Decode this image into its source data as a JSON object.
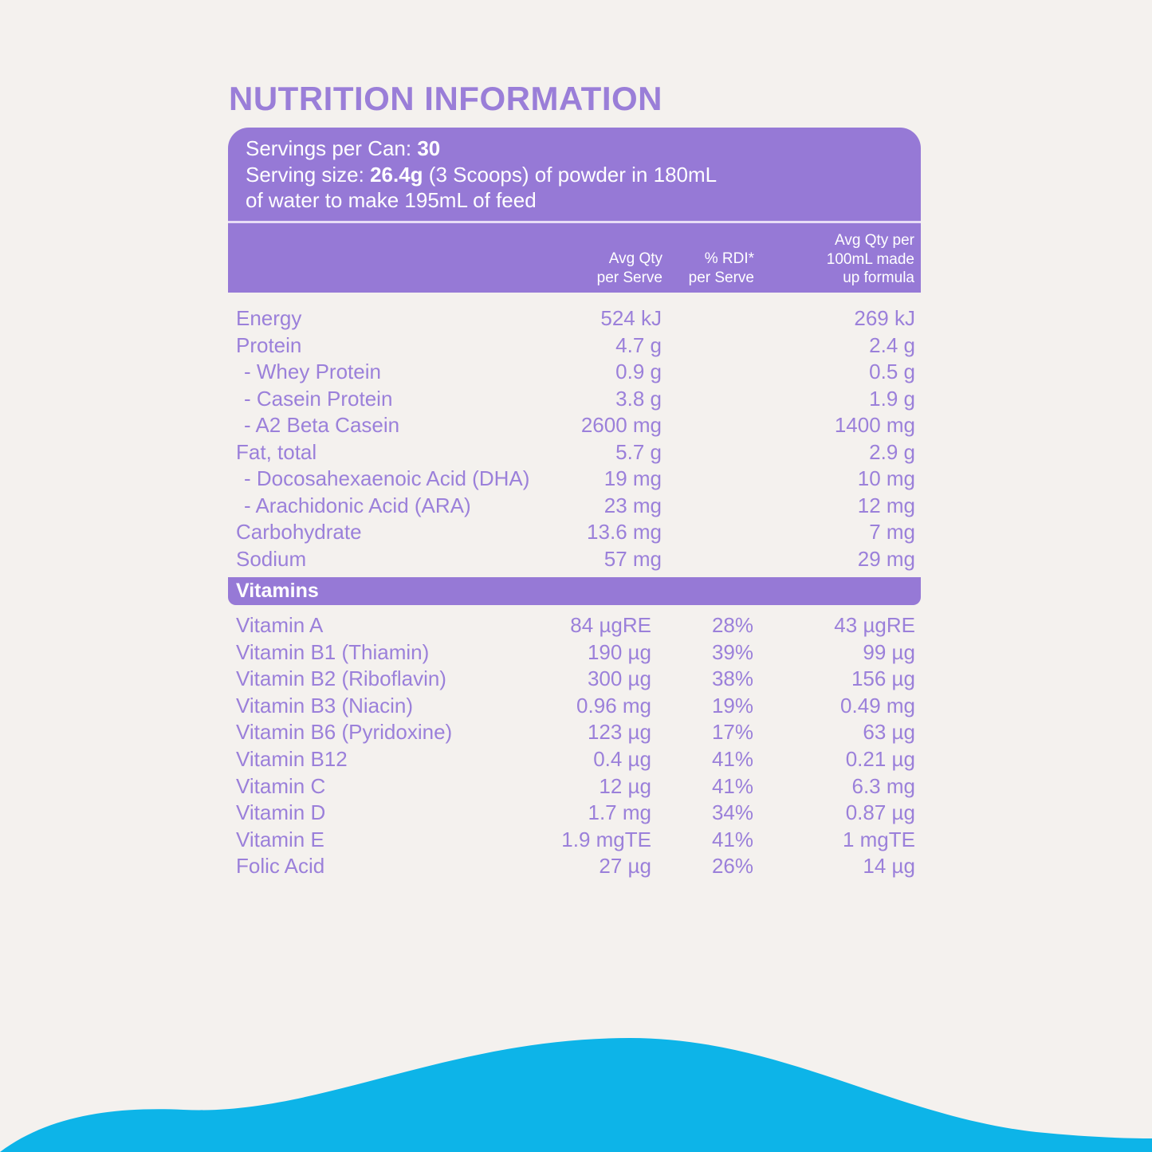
{
  "title": "NUTRITION INFORMATION",
  "serving": {
    "servings_label": "Servings per Can: ",
    "servings_value": "30",
    "size_label": "Serving size: ",
    "size_value": "26.4g",
    "size_rest": " (3 Scoops) of powder in 180mL",
    "line3": "of water to make 195mL of feed"
  },
  "columns": {
    "per_serve": [
      "Avg Qty",
      "per Serve"
    ],
    "rdi": [
      "% RDI*",
      "per Serve"
    ],
    "per_100ml": [
      "Avg Qty per",
      "100mL made",
      "up formula"
    ]
  },
  "nutrients": [
    {
      "name": "Energy",
      "serve": "524 kJ",
      "per100": "269 kJ",
      "sub": false
    },
    {
      "name": "Protein",
      "serve": "4.7 g",
      "per100": "2.4 g",
      "sub": false
    },
    {
      "name": "- Whey Protein",
      "serve": "0.9 g",
      "per100": "0.5 g",
      "sub": true
    },
    {
      "name": "- Casein Protein",
      "serve": "3.8 g",
      "per100": "1.9 g",
      "sub": true
    },
    {
      "name": "- A2 Beta Casein",
      "serve": "2600 mg",
      "per100": "1400 mg",
      "sub": true
    },
    {
      "name": "Fat, total",
      "serve": "5.7 g",
      "per100": "2.9 g",
      "sub": false
    },
    {
      "name": "- Docosahexaenoic Acid (DHA)",
      "serve": "19 mg",
      "per100": "10 mg",
      "sub": true
    },
    {
      "name": "- Arachidonic Acid (ARA)",
      "serve": "23 mg",
      "per100": "12 mg",
      "sub": true
    },
    {
      "name": "Carbohydrate",
      "serve": "13.6 mg",
      "per100": "7 mg",
      "sub": false
    },
    {
      "name": "Sodium",
      "serve": "57 mg",
      "per100": "29 mg",
      "sub": false
    }
  ],
  "vitamins_label": "Vitamins",
  "vitamins": [
    {
      "name": "Vitamin A",
      "serve": "84 µgRE",
      "rdi": "28%",
      "per100": "43 µgRE"
    },
    {
      "name": "Vitamin B1 (Thiamin)",
      "serve": "190 µg",
      "rdi": "39%",
      "per100": "99 µg"
    },
    {
      "name": "Vitamin B2 (Riboflavin)",
      "serve": "300 µg",
      "rdi": "38%",
      "per100": "156 µg"
    },
    {
      "name": "Vitamin B3 (Niacin)",
      "serve": "0.96 mg",
      "rdi": "19%",
      "per100": "0.49 mg"
    },
    {
      "name": "Vitamin B6 (Pyridoxine)",
      "serve": "123 µg",
      "rdi": "17%",
      "per100": "63 µg"
    },
    {
      "name": "Vitamin B12",
      "serve": "0.4 µg",
      "rdi": "41%",
      "per100": "0.21 µg"
    },
    {
      "name": "Vitamin C",
      "serve": "12 µg",
      "rdi": "41%",
      "per100": "6.3 mg"
    },
    {
      "name": "Vitamin D",
      "serve": "1.7 mg",
      "rdi": "34%",
      "per100": "0.87 µg"
    },
    {
      "name": "Vitamin E",
      "serve": "1.9 mgTE",
      "rdi": "41%",
      "per100": "1 mgTE"
    },
    {
      "name": "Folic Acid",
      "serve": "27 µg",
      "rdi": "26%",
      "per100": "14 µg"
    }
  ],
  "colors": {
    "purple": "#9679d6",
    "text": "#9b80da",
    "background": "#f4f1ee",
    "wave": "#0db4e8"
  }
}
